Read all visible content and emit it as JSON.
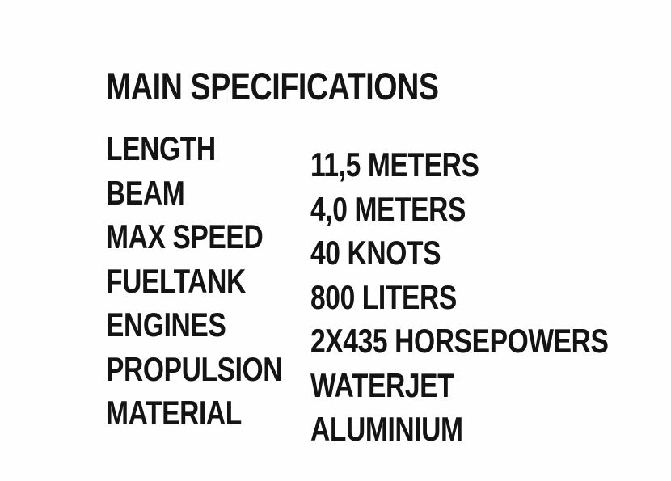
{
  "document": {
    "title": "MAIN SPECIFICATIONS"
  },
  "specifications": {
    "rows": [
      {
        "label": "LENGTH",
        "value": "11,5 METERS"
      },
      {
        "label": "BEAM",
        "value": "4,0 METERS"
      },
      {
        "label": "MAX SPEED",
        "value": "40 KNOTS"
      },
      {
        "label": "FUELTANK",
        "value": "800 LITERS"
      },
      {
        "label": "ENGINES",
        "value": "2X435 HORSEPOWERS"
      },
      {
        "label": "PROPULSION",
        "value": "WATERJET"
      },
      {
        "label": "MATERIAL",
        "value": "ALUMINIUM"
      }
    ]
  },
  "colors": {
    "background": "#fdfefd",
    "text": "#141414"
  }
}
